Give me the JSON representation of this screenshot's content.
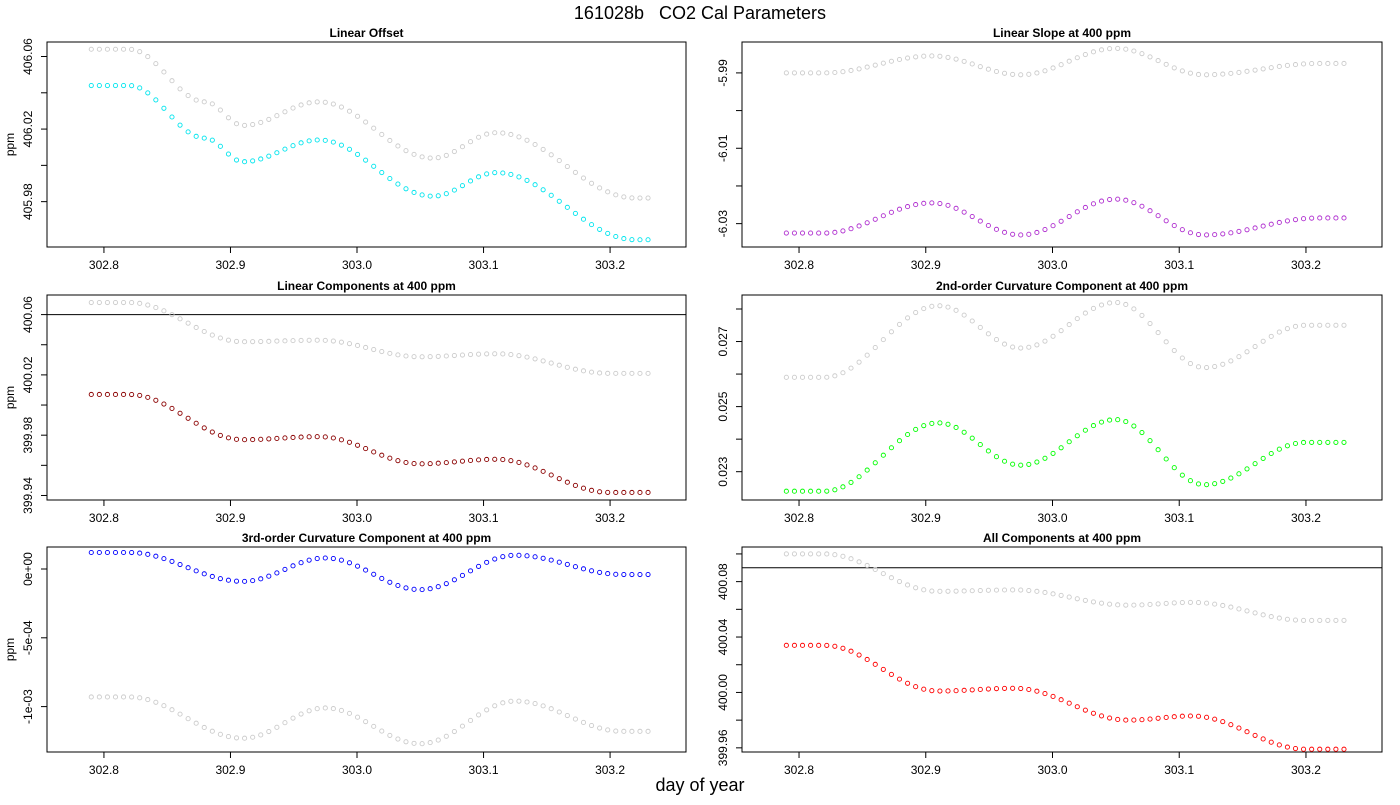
{
  "figure": {
    "title": "161028b   CO2 Cal Parameters",
    "xlabel": "day of year"
  },
  "chart_data": [
    {
      "type": "scatter",
      "title": "Linear Offset",
      "ylabel": "ppm",
      "xlim": [
        302.755,
        303.26
      ],
      "ylim": [
        405.955,
        406.068
      ],
      "xticks": [
        302.8,
        302.9,
        303.0,
        303.1,
        303.2
      ],
      "xtick_labels": [
        "302.8",
        "302.9",
        "303.0",
        "303.1",
        "303.2"
      ],
      "yticks": [
        405.98,
        406.0,
        406.02,
        406.04,
        406.06
      ],
      "ytick_labels": [
        "405.98",
        "",
        "406.02",
        "",
        "406.06"
      ],
      "hline": null,
      "series": [
        {
          "color": "#cccccc",
          "keys": [
            [
              302.79,
              406.064
            ],
            [
              302.82,
              406.064
            ],
            [
              302.88,
              406.035
            ],
            [
              302.91,
              406.022
            ],
            [
              302.97,
              406.035
            ],
            [
              303.06,
              406.004
            ],
            [
              303.11,
              406.018
            ],
            [
              303.22,
              405.982
            ],
            [
              303.23,
              405.982
            ]
          ]
        },
        {
          "color": "#00e5ee",
          "keys": [
            [
              302.79,
              406.044
            ],
            [
              302.82,
              406.044
            ],
            [
              302.88,
              406.015
            ],
            [
              302.91,
              406.002
            ],
            [
              302.97,
              406.014
            ],
            [
              303.06,
              405.983
            ],
            [
              303.11,
              405.996
            ],
            [
              303.22,
              405.959
            ],
            [
              303.23,
              405.959
            ]
          ]
        }
      ]
    },
    {
      "type": "scatter",
      "title": "Linear Slope at 400 ppm",
      "ylabel": "",
      "xlim": [
        302.755,
        303.26
      ],
      "ylim": [
        -6.0362,
        -5.9818
      ],
      "xticks": [
        302.8,
        302.9,
        303.0,
        303.1,
        303.2
      ],
      "xtick_labels": [
        "302.8",
        "302.9",
        "303.0",
        "303.1",
        "303.2"
      ],
      "yticks": [
        -6.03,
        -6.02,
        -6.01,
        -6.0,
        -5.99
      ],
      "ytick_labels": [
        "-6.03",
        "",
        "-6.01",
        "",
        "-5.99"
      ],
      "hline": null,
      "series": [
        {
          "color": "#cccccc",
          "keys": [
            [
              302.79,
              -5.99
            ],
            [
              302.82,
              -5.99
            ],
            [
              302.905,
              -5.9855
            ],
            [
              302.975,
              -5.9905
            ],
            [
              303.05,
              -5.9835
            ],
            [
              303.12,
              -5.9905
            ],
            [
              303.21,
              -5.9875
            ],
            [
              303.23,
              -5.9875
            ]
          ]
        },
        {
          "color": "#b030d0",
          "keys": [
            [
              302.79,
              -6.0325
            ],
            [
              302.82,
              -6.0325
            ],
            [
              302.905,
              -6.0245
            ],
            [
              302.975,
              -6.033
            ],
            [
              303.05,
              -6.0235
            ],
            [
              303.12,
              -6.033
            ],
            [
              303.21,
              -6.0285
            ],
            [
              303.23,
              -6.0285
            ]
          ]
        }
      ]
    },
    {
      "type": "scatter",
      "title": "Linear Components at 400 ppm",
      "ylabel": "ppm",
      "xlim": [
        302.755,
        303.26
      ],
      "ylim": [
        399.937,
        400.073
      ],
      "xticks": [
        302.8,
        302.9,
        303.0,
        303.1,
        303.2
      ],
      "xtick_labels": [
        "302.8",
        "302.9",
        "303.0",
        "303.1",
        "303.2"
      ],
      "yticks": [
        399.94,
        399.96,
        399.98,
        400.0,
        400.02,
        400.04,
        400.06
      ],
      "ytick_labels": [
        "399.94",
        "",
        "399.98",
        "",
        "400.02",
        "",
        "400.06"
      ],
      "hline": 400.06,
      "series": [
        {
          "color": "#cccccc",
          "keys": [
            [
              302.79,
              400.068
            ],
            [
              302.82,
              400.068
            ],
            [
              302.91,
              400.042
            ],
            [
              302.97,
              400.043
            ],
            [
              303.05,
              400.032
            ],
            [
              303.11,
              400.034
            ],
            [
              303.2,
              400.021
            ],
            [
              303.23,
              400.021
            ]
          ]
        },
        {
          "color": "#8b0000",
          "keys": [
            [
              302.79,
              400.007
            ],
            [
              302.82,
              400.007
            ],
            [
              302.91,
              399.977
            ],
            [
              302.97,
              399.979
            ],
            [
              303.05,
              399.961
            ],
            [
              303.11,
              399.964
            ],
            [
              303.2,
              399.942
            ],
            [
              303.23,
              399.942
            ]
          ]
        }
      ]
    },
    {
      "type": "scatter",
      "title": "2nd-order Curvature Component at 400 ppm",
      "ylabel": "",
      "xlim": [
        302.755,
        303.26
      ],
      "ylim": [
        0.02213,
        0.02843
      ],
      "xticks": [
        302.8,
        302.9,
        303.0,
        303.1,
        303.2
      ],
      "xtick_labels": [
        "302.8",
        "302.9",
        "303.0",
        "303.1",
        "303.2"
      ],
      "yticks": [
        0.023,
        0.024,
        0.025,
        0.026,
        0.027,
        0.028
      ],
      "ytick_labels": [
        "0.023",
        "",
        "0.025",
        "",
        "0.027",
        ""
      ],
      "hline": null,
      "series": [
        {
          "color": "#cccccc",
          "keys": [
            [
              302.79,
              0.0259
            ],
            [
              302.82,
              0.0259
            ],
            [
              302.91,
              0.0281
            ],
            [
              302.975,
              0.0268
            ],
            [
              303.05,
              0.0282
            ],
            [
              303.12,
              0.0262
            ],
            [
              303.2,
              0.0275
            ],
            [
              303.23,
              0.0275
            ]
          ]
        },
        {
          "color": "#00ff00",
          "keys": [
            [
              302.79,
              0.0224
            ],
            [
              302.82,
              0.0224
            ],
            [
              302.91,
              0.0245
            ],
            [
              302.975,
              0.0232
            ],
            [
              303.05,
              0.0246
            ],
            [
              303.12,
              0.0226
            ],
            [
              303.2,
              0.0239
            ],
            [
              303.23,
              0.0239
            ]
          ]
        }
      ]
    },
    {
      "type": "scatter",
      "title": "3rd-order Curvature Component at 400 ppm",
      "ylabel": "ppm",
      "xlim": [
        302.755,
        303.26
      ],
      "ylim": [
        -0.00133,
        0.00016
      ],
      "xticks": [
        302.8,
        302.9,
        303.0,
        303.1,
        303.2
      ],
      "xtick_labels": [
        "302.8",
        "302.9",
        "303.0",
        "303.1",
        "303.2"
      ],
      "yticks": [
        -0.001,
        -0.0005,
        0.0
      ],
      "ytick_labels": [
        "-1e-03",
        "-5e-04",
        "0e+00"
      ],
      "hline": null,
      "series": [
        {
          "color": "#cccccc",
          "keys": [
            [
              302.79,
              -0.00093
            ],
            [
              302.82,
              -0.00093
            ],
            [
              302.91,
              -0.00123
            ],
            [
              302.975,
              -0.00101
            ],
            [
              303.05,
              -0.00127
            ],
            [
              303.125,
              -0.00096
            ],
            [
              303.21,
              -0.00118
            ],
            [
              303.23,
              -0.00118
            ]
          ]
        },
        {
          "color": "#0000ff",
          "keys": [
            [
              302.79,
              0.00012
            ],
            [
              302.82,
              0.00012
            ],
            [
              302.91,
              -9e-05
            ],
            [
              302.975,
              8e-05
            ],
            [
              303.05,
              -0.00015
            ],
            [
              303.125,
              0.0001
            ],
            [
              303.21,
              -4e-05
            ],
            [
              303.23,
              -4e-05
            ]
          ]
        }
      ]
    },
    {
      "type": "scatter",
      "title": "All Components at 400 ppm",
      "ylabel": "",
      "xlim": [
        302.755,
        303.26
      ],
      "ylim": [
        399.957,
        400.105
      ],
      "xticks": [
        302.8,
        302.9,
        303.0,
        303.1,
        303.2
      ],
      "xtick_labels": [
        "302.8",
        "302.9",
        "303.0",
        "303.1",
        "303.2"
      ],
      "yticks": [
        399.96,
        399.98,
        400.0,
        400.02,
        400.04,
        400.06,
        400.08,
        400.1
      ],
      "ytick_labels": [
        "399.96",
        "",
        "400.00",
        "",
        "400.04",
        "",
        "400.08",
        ""
      ],
      "hline": 400.09,
      "series": [
        {
          "color": "#cccccc",
          "keys": [
            [
              302.79,
              400.1
            ],
            [
              302.82,
              400.1
            ],
            [
              302.91,
              400.073
            ],
            [
              302.97,
              400.074
            ],
            [
              303.06,
              400.063
            ],
            [
              303.11,
              400.065
            ],
            [
              303.2,
              400.052
            ],
            [
              303.23,
              400.052
            ]
          ]
        },
        {
          "color": "#ff0000",
          "keys": [
            [
              302.79,
              400.034
            ],
            [
              302.82,
              400.034
            ],
            [
              302.91,
              400.001
            ],
            [
              302.97,
              400.003
            ],
            [
              303.06,
              399.98
            ],
            [
              303.11,
              399.983
            ],
            [
              303.2,
              399.959
            ],
            [
              303.23,
              399.959
            ]
          ]
        }
      ]
    }
  ]
}
